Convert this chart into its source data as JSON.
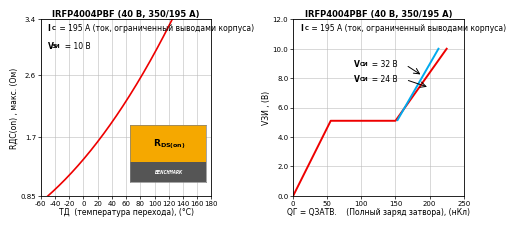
{
  "title1": "IRFP4004PBF (40 B, 350/195 A)",
  "title2": "IRFP4004PBF (40 B, 350/195 A)",
  "left_annot1_prefix": "I",
  "left_annot1_sub": "C",
  "left_annot1_suffix": " = 195 A (ток, ограниченный выводами корпуса)",
  "left_annot2_prefix": "V",
  "left_annot2_sub": "ЗИ",
  "left_annot2_suffix": "  = 10 B",
  "left_xlabel": "TД  (температура перехода), (°C)",
  "left_ylabel": "RДС(on) , макс. (Ом)",
  "left_ylim": [
    0.85,
    3.4
  ],
  "left_xlim": [
    -60,
    180
  ],
  "left_yticks": [
    0.85,
    1.7,
    2.6,
    3.4
  ],
  "left_xticks": [
    -60,
    -40,
    -20,
    0,
    20,
    40,
    60,
    80,
    100,
    120,
    140,
    160,
    180
  ],
  "right_annot1_prefix": "I",
  "right_annot1_sub": "C",
  "right_annot1_suffix": " = 195 A (ток, ограниченный выводами корпуса)",
  "right_annot2_1_prefix": "V",
  "right_annot2_1_sub": "СИ",
  "right_annot2_1_suffix": "  = 32 B",
  "right_annot2_2_prefix": "V",
  "right_annot2_2_sub": "СИ",
  "right_annot2_2_suffix": "  = 24 B",
  "right_xlabel_part1": "QГ = QЗАТВ.",
  "right_xlabel_part2": "    (Полный заряд затвора), (нКл)",
  "right_ylabel": "VЗИ , (B)",
  "right_ylim": [
    0.0,
    12.0
  ],
  "right_xlim": [
    0,
    250
  ],
  "right_yticks": [
    0.0,
    2.0,
    4.0,
    6.0,
    8.0,
    10.0,
    12.0
  ],
  "right_xticks": [
    0,
    50,
    100,
    150,
    200,
    250
  ],
  "line_red": "#EE0000",
  "line_blue": "#00AAEE",
  "background_color": "#FFFFFF",
  "grid_color": "#BBBBBB"
}
